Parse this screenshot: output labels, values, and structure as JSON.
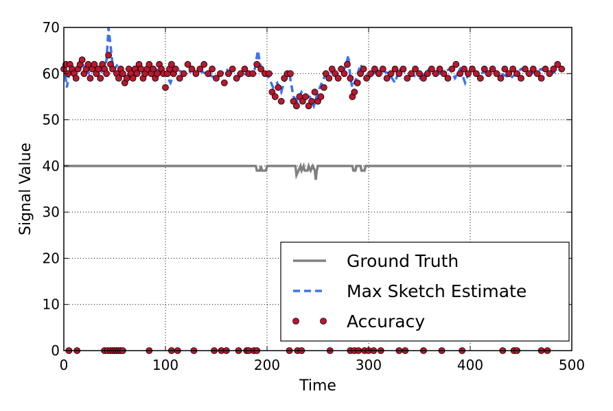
{
  "chart_data": {
    "type": "line",
    "title": "",
    "xlabel": "Time",
    "ylabel": "Signal Value",
    "xlim": [
      0,
      500
    ],
    "ylim": [
      0,
      70
    ],
    "x_ticks": [
      0,
      100,
      200,
      300,
      400,
      500
    ],
    "y_ticks": [
      0,
      10,
      20,
      30,
      40,
      50,
      60,
      70
    ],
    "grid": true,
    "legend_position": "bottom-right",
    "series": [
      {
        "name": "Ground Truth",
        "style": "solid",
        "color": "#808080",
        "points": [
          [
            0,
            40
          ],
          [
            189,
            40
          ],
          [
            190,
            39
          ],
          [
            193,
            39
          ],
          [
            194,
            40
          ],
          [
            195,
            39
          ],
          [
            199,
            39
          ],
          [
            200,
            40
          ],
          [
            228,
            40
          ],
          [
            229,
            38
          ],
          [
            231,
            39
          ],
          [
            233,
            40
          ],
          [
            234,
            39
          ],
          [
            236,
            40
          ],
          [
            237,
            39
          ],
          [
            240,
            39
          ],
          [
            241,
            40
          ],
          [
            243,
            39
          ],
          [
            245,
            40
          ],
          [
            247,
            39
          ],
          [
            248,
            37
          ],
          [
            249,
            39
          ],
          [
            250,
            40
          ],
          [
            284,
            40
          ],
          [
            285,
            39
          ],
          [
            287,
            39
          ],
          [
            288,
            40
          ],
          [
            292,
            40
          ],
          [
            293,
            39
          ],
          [
            296,
            39
          ],
          [
            297,
            40
          ],
          [
            490,
            40
          ]
        ]
      },
      {
        "name": "Max Sketch Estimate",
        "style": "dashed",
        "color": "#3a72f5",
        "points": [
          [
            0,
            62
          ],
          [
            3,
            57
          ],
          [
            6,
            61
          ],
          [
            10,
            60
          ],
          [
            15,
            61
          ],
          [
            20,
            62
          ],
          [
            25,
            60
          ],
          [
            30,
            61
          ],
          [
            35,
            60
          ],
          [
            40,
            61
          ],
          [
            42,
            63
          ],
          [
            44,
            70
          ],
          [
            46,
            66
          ],
          [
            48,
            62
          ],
          [
            50,
            61
          ],
          [
            53,
            62
          ],
          [
            56,
            60
          ],
          [
            60,
            59
          ],
          [
            65,
            60
          ],
          [
            70,
            61
          ],
          [
            80,
            60
          ],
          [
            90,
            61
          ],
          [
            100,
            60
          ],
          [
            105,
            58
          ],
          [
            110,
            61
          ],
          [
            120,
            60
          ],
          [
            130,
            61
          ],
          [
            140,
            60
          ],
          [
            150,
            59
          ],
          [
            160,
            61
          ],
          [
            170,
            59
          ],
          [
            180,
            60
          ],
          [
            188,
            61
          ],
          [
            191,
            65
          ],
          [
            194,
            61
          ],
          [
            198,
            60
          ],
          [
            202,
            59
          ],
          [
            206,
            57
          ],
          [
            210,
            58
          ],
          [
            214,
            56
          ],
          [
            218,
            59
          ],
          [
            222,
            60
          ],
          [
            226,
            55
          ],
          [
            230,
            54
          ],
          [
            234,
            56
          ],
          [
            238,
            55
          ],
          [
            242,
            55
          ],
          [
            246,
            53
          ],
          [
            250,
            56
          ],
          [
            254,
            58
          ],
          [
            258,
            60
          ],
          [
            262,
            60
          ],
          [
            266,
            61
          ],
          [
            270,
            59
          ],
          [
            274,
            60
          ],
          [
            278,
            62
          ],
          [
            280,
            64
          ],
          [
            282,
            59
          ],
          [
            284,
            57
          ],
          [
            288,
            59
          ],
          [
            292,
            62
          ],
          [
            296,
            60
          ],
          [
            300,
            59
          ],
          [
            310,
            61
          ],
          [
            320,
            60
          ],
          [
            326,
            58
          ],
          [
            330,
            61
          ],
          [
            340,
            60
          ],
          [
            350,
            59
          ],
          [
            360,
            61
          ],
          [
            370,
            60
          ],
          [
            380,
            61
          ],
          [
            385,
            59
          ],
          [
            390,
            61
          ],
          [
            395,
            58
          ],
          [
            400,
            61
          ],
          [
            410,
            60
          ],
          [
            420,
            61
          ],
          [
            430,
            60
          ],
          [
            440,
            59
          ],
          [
            450,
            61
          ],
          [
            460,
            60
          ],
          [
            470,
            61
          ],
          [
            480,
            60
          ],
          [
            490,
            61
          ]
        ]
      },
      {
        "name": "Accuracy",
        "style": "markers",
        "color": "#b8182f",
        "points": [
          [
            0,
            61
          ],
          [
            2,
            62
          ],
          [
            4,
            60
          ],
          [
            6,
            62
          ],
          [
            8,
            61
          ],
          [
            10,
            60
          ],
          [
            12,
            59
          ],
          [
            14,
            61
          ],
          [
            16,
            62
          ],
          [
            18,
            63
          ],
          [
            20,
            60
          ],
          [
            22,
            61
          ],
          [
            24,
            62
          ],
          [
            26,
            59
          ],
          [
            28,
            61
          ],
          [
            30,
            62
          ],
          [
            32,
            60
          ],
          [
            34,
            61
          ],
          [
            36,
            59
          ],
          [
            38,
            62
          ],
          [
            40,
            61
          ],
          [
            42,
            60
          ],
          [
            44,
            64
          ],
          [
            46,
            62
          ],
          [
            48,
            61
          ],
          [
            52,
            60
          ],
          [
            54,
            59
          ],
          [
            56,
            61
          ],
          [
            58,
            60
          ],
          [
            60,
            58
          ],
          [
            62,
            59
          ],
          [
            64,
            61
          ],
          [
            66,
            60
          ],
          [
            68,
            59
          ],
          [
            70,
            61
          ],
          [
            72,
            60
          ],
          [
            74,
            62
          ],
          [
            76,
            61
          ],
          [
            78,
            59
          ],
          [
            80,
            60
          ],
          [
            82,
            61
          ],
          [
            84,
            62
          ],
          [
            86,
            60
          ],
          [
            88,
            61
          ],
          [
            90,
            59
          ],
          [
            92,
            60
          ],
          [
            94,
            62
          ],
          [
            96,
            61
          ],
          [
            98,
            60
          ],
          [
            100,
            57
          ],
          [
            102,
            60
          ],
          [
            104,
            61
          ],
          [
            106,
            62
          ],
          [
            108,
            60
          ],
          [
            110,
            61
          ],
          [
            114,
            59
          ],
          [
            118,
            60
          ],
          [
            122,
            62
          ],
          [
            126,
            61
          ],
          [
            130,
            60
          ],
          [
            134,
            61
          ],
          [
            138,
            62
          ],
          [
            142,
            60
          ],
          [
            146,
            61
          ],
          [
            150,
            59
          ],
          [
            154,
            60
          ],
          [
            158,
            58
          ],
          [
            162,
            60
          ],
          [
            166,
            61
          ],
          [
            170,
            59
          ],
          [
            174,
            60
          ],
          [
            178,
            61
          ],
          [
            182,
            60
          ],
          [
            186,
            60
          ],
          [
            190,
            62
          ],
          [
            194,
            61
          ],
          [
            198,
            60
          ],
          [
            202,
            60
          ],
          [
            205,
            56
          ],
          [
            208,
            55
          ],
          [
            211,
            57
          ],
          [
            214,
            54
          ],
          [
            217,
            59
          ],
          [
            220,
            60
          ],
          [
            223,
            60
          ],
          [
            226,
            54
          ],
          [
            229,
            53
          ],
          [
            232,
            55
          ],
          [
            235,
            54
          ],
          [
            238,
            55
          ],
          [
            241,
            53
          ],
          [
            244,
            54
          ],
          [
            247,
            56
          ],
          [
            250,
            54
          ],
          [
            253,
            55
          ],
          [
            256,
            57
          ],
          [
            258,
            60
          ],
          [
            261,
            59
          ],
          [
            264,
            61
          ],
          [
            267,
            60
          ],
          [
            270,
            59
          ],
          [
            273,
            61
          ],
          [
            276,
            60
          ],
          [
            279,
            62
          ],
          [
            282,
            59
          ],
          [
            284,
            55
          ],
          [
            286,
            56
          ],
          [
            289,
            58
          ],
          [
            292,
            60
          ],
          [
            295,
            61
          ],
          [
            298,
            59
          ],
          [
            302,
            60
          ],
          [
            306,
            61
          ],
          [
            310,
            60
          ],
          [
            314,
            61
          ],
          [
            318,
            59
          ],
          [
            322,
            60
          ],
          [
            326,
            61
          ],
          [
            330,
            60
          ],
          [
            334,
            61
          ],
          [
            338,
            59
          ],
          [
            342,
            60
          ],
          [
            346,
            61
          ],
          [
            350,
            60
          ],
          [
            354,
            59
          ],
          [
            358,
            60
          ],
          [
            362,
            61
          ],
          [
            366,
            60
          ],
          [
            370,
            61
          ],
          [
            374,
            60
          ],
          [
            378,
            59
          ],
          [
            382,
            61
          ],
          [
            386,
            62
          ],
          [
            390,
            60
          ],
          [
            394,
            61
          ],
          [
            398,
            60
          ],
          [
            402,
            61
          ],
          [
            406,
            60
          ],
          [
            410,
            59
          ],
          [
            414,
            61
          ],
          [
            418,
            60
          ],
          [
            422,
            61
          ],
          [
            426,
            60
          ],
          [
            430,
            59
          ],
          [
            434,
            61
          ],
          [
            438,
            60
          ],
          [
            442,
            61
          ],
          [
            446,
            60
          ],
          [
            450,
            59
          ],
          [
            454,
            61
          ],
          [
            458,
            60
          ],
          [
            462,
            61
          ],
          [
            466,
            60
          ],
          [
            470,
            59
          ],
          [
            474,
            61
          ],
          [
            478,
            60
          ],
          [
            482,
            61
          ],
          [
            486,
            62
          ],
          [
            490,
            61
          ],
          [
            5,
            0
          ],
          [
            13,
            0
          ],
          [
            40,
            0
          ],
          [
            43,
            0
          ],
          [
            46,
            0
          ],
          [
            48,
            0
          ],
          [
            50,
            0
          ],
          [
            52,
            0
          ],
          [
            54,
            0
          ],
          [
            56,
            0
          ],
          [
            58,
            0
          ],
          [
            84,
            0
          ],
          [
            106,
            0
          ],
          [
            112,
            0
          ],
          [
            128,
            0
          ],
          [
            148,
            0
          ],
          [
            155,
            0
          ],
          [
            160,
            0
          ],
          [
            172,
            0
          ],
          [
            180,
            0
          ],
          [
            182,
            0
          ],
          [
            187,
            0
          ],
          [
            190,
            0
          ],
          [
            222,
            0
          ],
          [
            230,
            0
          ],
          [
            234,
            0
          ],
          [
            262,
            0
          ],
          [
            282,
            0
          ],
          [
            286,
            0
          ],
          [
            290,
            0
          ],
          [
            296,
            0
          ],
          [
            300,
            0
          ],
          [
            305,
            0
          ],
          [
            312,
            0
          ],
          [
            330,
            0
          ],
          [
            336,
            0
          ],
          [
            354,
            0
          ],
          [
            372,
            0
          ],
          [
            392,
            0
          ],
          [
            432,
            0
          ],
          [
            443,
            0
          ],
          [
            446,
            0
          ],
          [
            470,
            0
          ],
          [
            476,
            0
          ]
        ]
      }
    ]
  }
}
